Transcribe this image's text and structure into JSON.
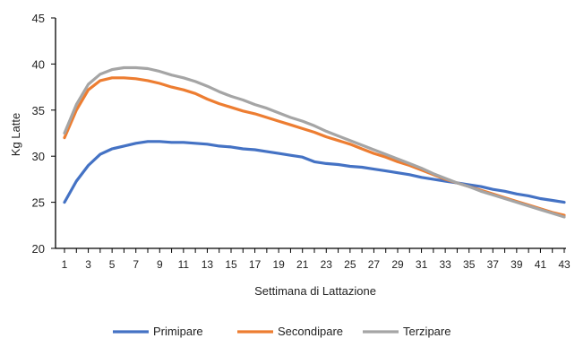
{
  "chart_data": {
    "type": "line",
    "title": "",
    "xlabel": "Settimana di Lattazione",
    "ylabel": "Kg Latte",
    "ylim": [
      20,
      45
    ],
    "yticks": [
      20,
      25,
      30,
      35,
      40,
      45
    ],
    "xlim": [
      1,
      43
    ],
    "xticks": [
      1,
      3,
      5,
      7,
      9,
      11,
      13,
      15,
      17,
      19,
      21,
      23,
      25,
      27,
      29,
      31,
      33,
      35,
      37,
      39,
      41,
      43
    ],
    "grid": false,
    "legend_position": "bottom",
    "x": [
      1,
      2,
      3,
      4,
      5,
      6,
      7,
      8,
      9,
      10,
      11,
      12,
      13,
      14,
      15,
      16,
      17,
      18,
      19,
      20,
      21,
      22,
      23,
      24,
      25,
      26,
      27,
      28,
      29,
      30,
      31,
      32,
      33,
      34,
      35,
      36,
      37,
      38,
      39,
      40,
      41,
      42,
      43
    ],
    "series": [
      {
        "name": "Primipare",
        "color": "#4472c4",
        "values": [
          25.0,
          27.3,
          29.0,
          30.2,
          30.8,
          31.1,
          31.4,
          31.6,
          31.6,
          31.5,
          31.5,
          31.4,
          31.3,
          31.1,
          31.0,
          30.8,
          30.7,
          30.5,
          30.3,
          30.1,
          29.9,
          29.4,
          29.2,
          29.1,
          28.9,
          28.8,
          28.6,
          28.4,
          28.2,
          28.0,
          27.7,
          27.5,
          27.3,
          27.1,
          26.9,
          26.7,
          26.4,
          26.2,
          25.9,
          25.7,
          25.4,
          25.2,
          25.0
        ]
      },
      {
        "name": "Secondipare",
        "color": "#ed7d31",
        "values": [
          32.0,
          35.0,
          37.2,
          38.2,
          38.5,
          38.5,
          38.4,
          38.2,
          37.9,
          37.5,
          37.2,
          36.8,
          36.2,
          35.7,
          35.3,
          34.9,
          34.6,
          34.2,
          33.8,
          33.4,
          33.0,
          32.6,
          32.1,
          31.7,
          31.3,
          30.8,
          30.3,
          29.9,
          29.4,
          29.0,
          28.5,
          28.0,
          27.5,
          27.1,
          26.7,
          26.3,
          25.9,
          25.5,
          25.1,
          24.7,
          24.3,
          23.9,
          23.6
        ]
      },
      {
        "name": "Terzipare",
        "color": "#a5a5a5",
        "values": [
          32.5,
          35.6,
          37.8,
          38.9,
          39.4,
          39.6,
          39.6,
          39.5,
          39.2,
          38.8,
          38.5,
          38.1,
          37.6,
          37.0,
          36.5,
          36.1,
          35.6,
          35.2,
          34.7,
          34.2,
          33.8,
          33.3,
          32.7,
          32.2,
          31.7,
          31.2,
          30.7,
          30.2,
          29.7,
          29.2,
          28.7,
          28.1,
          27.6,
          27.1,
          26.7,
          26.2,
          25.8,
          25.4,
          25.0,
          24.6,
          24.2,
          23.8,
          23.4
        ]
      }
    ]
  }
}
